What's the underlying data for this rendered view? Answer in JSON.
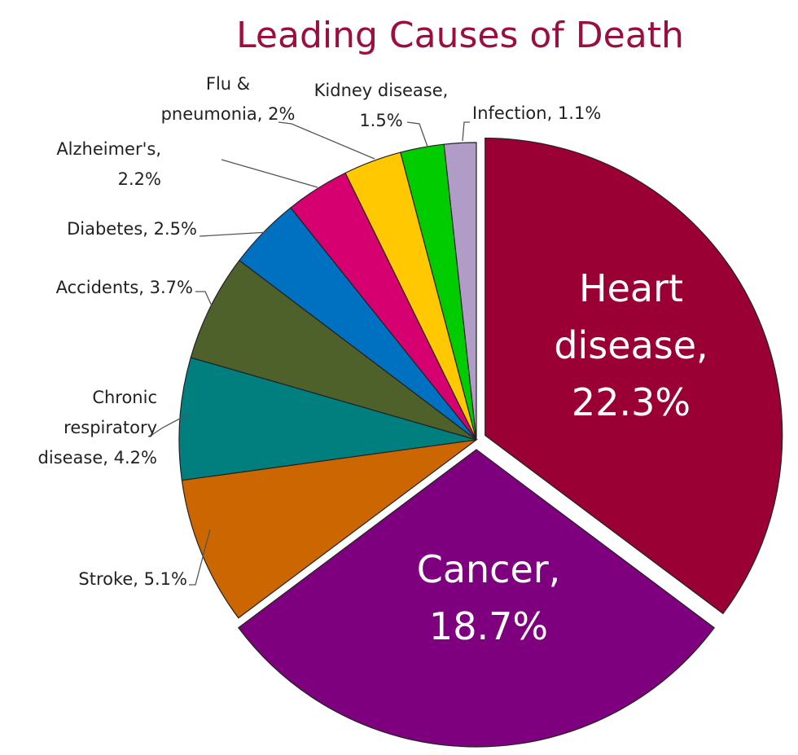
{
  "chart_data": {
    "type": "pie",
    "title": "Leading Causes of Death",
    "slices": [
      {
        "label": "Heart disease, 22.3%",
        "value": 22.3,
        "color": "#9b0034",
        "exploded": true
      },
      {
        "label": "Cancer, 18.7%",
        "value": 18.7,
        "color": "#7f007f",
        "exploded": true
      },
      {
        "label": "Stroke, 5.1%",
        "value": 5.1,
        "color": "#cc6600"
      },
      {
        "label": "Chronic respiratory disease, 4.2%",
        "value": 4.2,
        "color": "#007f7f"
      },
      {
        "label": "Accidents, 3.7%",
        "value": 3.7,
        "color": "#4f612b"
      },
      {
        "label": "Diabetes, 2.5%",
        "value": 2.5,
        "color": "#0070c0"
      },
      {
        "label": "Alzheimer's, 2.2%",
        "value": 2.2,
        "color": "#d60070"
      },
      {
        "label": "Flu & pneumonia, 2%",
        "value": 2.0,
        "color": "#ffc800"
      },
      {
        "label": "Kidney disease, 1.5%",
        "value": 1.5,
        "color": "#00cc00"
      },
      {
        "label": "Infection, 1.1%",
        "value": 1.1,
        "color": "#b19cc7"
      }
    ]
  }
}
